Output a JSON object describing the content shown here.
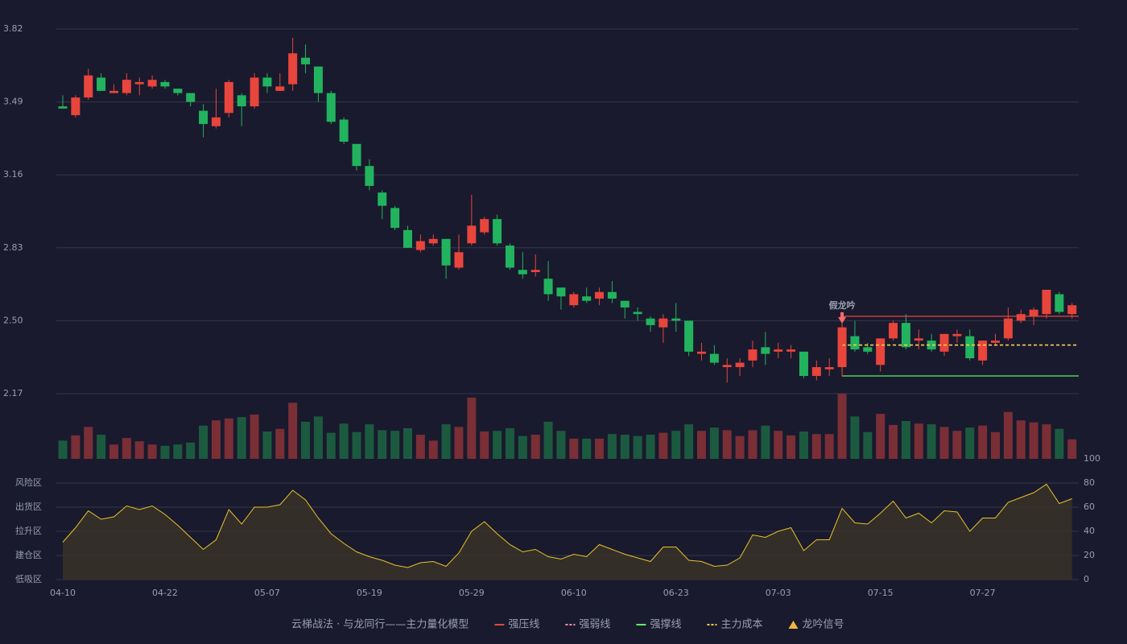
{
  "chart_data": {
    "type": "candlestick",
    "categories": [
      "04-10",
      null,
      null,
      null,
      null,
      null,
      null,
      null,
      "04-22",
      null,
      null,
      null,
      null,
      null,
      null,
      null,
      "05-07",
      null,
      null,
      null,
      null,
      null,
      null,
      null,
      "05-19",
      null,
      null,
      null,
      null,
      null,
      null,
      null,
      "05-29",
      null,
      null,
      null,
      null,
      null,
      null,
      null,
      "06-10",
      null,
      null,
      null,
      null,
      null,
      null,
      null,
      "06-23",
      null,
      null,
      null,
      null,
      null,
      null,
      null,
      "07-03",
      null,
      null,
      null,
      null,
      null,
      null,
      null,
      "07-15",
      null,
      null,
      null,
      null,
      null,
      null,
      null,
      "07-27",
      null,
      null,
      null,
      null,
      null,
      null,
      null
    ],
    "open": [
      3.47,
      3.43,
      3.51,
      3.6,
      3.53,
      3.53,
      3.57,
      3.56,
      3.58,
      3.55,
      3.53,
      3.45,
      3.38,
      3.44,
      3.52,
      3.47,
      3.6,
      3.54,
      3.57,
      3.69,
      3.65,
      3.53,
      3.41,
      3.3,
      3.2,
      3.08,
      3.01,
      2.91,
      2.82,
      2.85,
      2.87,
      2.74,
      2.85,
      2.9,
      2.96,
      2.84,
      2.73,
      2.72,
      2.69,
      2.65,
      2.57,
      2.61,
      2.6,
      2.63,
      2.59,
      2.54,
      2.51,
      2.47,
      2.51,
      2.5,
      2.35,
      2.35,
      2.29,
      2.29,
      2.32,
      2.38,
      2.36,
      2.36,
      2.36,
      2.25,
      2.28,
      2.29,
      2.43,
      2.38,
      2.3,
      2.42,
      2.49,
      2.41,
      2.41,
      2.36,
      2.43,
      2.43,
      2.32,
      2.4,
      2.42,
      2.5,
      2.52,
      2.53,
      2.62,
      2.53
    ],
    "high": [
      3.52,
      3.52,
      3.64,
      3.62,
      3.57,
      3.62,
      3.6,
      3.61,
      3.59,
      3.55,
      3.53,
      3.48,
      3.55,
      3.59,
      3.53,
      3.62,
      3.62,
      3.62,
      3.78,
      3.75,
      3.65,
      3.54,
      3.42,
      3.3,
      3.23,
      3.09,
      3.02,
      2.93,
      2.89,
      2.89,
      2.87,
      2.89,
      3.07,
      2.97,
      2.98,
      2.85,
      2.81,
      2.8,
      2.77,
      2.65,
      2.63,
      2.65,
      2.65,
      2.68,
      2.59,
      2.56,
      2.52,
      2.53,
      2.58,
      2.5,
      2.4,
      2.39,
      2.33,
      2.33,
      2.41,
      2.45,
      2.4,
      2.39,
      2.36,
      2.32,
      2.33,
      2.48,
      2.5,
      2.4,
      2.42,
      2.5,
      2.53,
      2.46,
      2.44,
      2.44,
      2.46,
      2.46,
      2.41,
      2.44,
      2.56,
      2.55,
      2.56,
      2.64,
      2.63,
      2.58
    ],
    "low": [
      3.46,
      3.42,
      3.5,
      3.54,
      3.53,
      3.52,
      3.52,
      3.55,
      3.55,
      3.52,
      3.47,
      3.33,
      3.37,
      3.42,
      3.38,
      3.46,
      3.53,
      3.54,
      3.54,
      3.62,
      3.49,
      3.39,
      3.3,
      3.18,
      3.09,
      2.96,
      2.91,
      2.83,
      2.81,
      2.84,
      2.69,
      2.73,
      2.84,
      2.89,
      2.84,
      2.73,
      2.69,
      2.7,
      2.59,
      2.55,
      2.56,
      2.58,
      2.57,
      2.58,
      2.51,
      2.5,
      2.45,
      2.4,
      2.45,
      2.34,
      2.32,
      2.3,
      2.22,
      2.25,
      2.29,
      2.3,
      2.33,
      2.33,
      2.24,
      2.23,
      2.25,
      2.25,
      2.36,
      2.35,
      2.27,
      2.41,
      2.37,
      2.37,
      2.36,
      2.34,
      2.4,
      2.32,
      2.3,
      2.39,
      2.41,
      2.49,
      2.48,
      2.51,
      2.53,
      2.51
    ],
    "close": [
      3.46,
      3.51,
      3.61,
      3.54,
      3.54,
      3.59,
      3.58,
      3.59,
      3.56,
      3.53,
      3.49,
      3.39,
      3.42,
      3.58,
      3.47,
      3.6,
      3.56,
      3.56,
      3.71,
      3.66,
      3.53,
      3.4,
      3.31,
      3.2,
      3.11,
      3.02,
      2.92,
      2.83,
      2.86,
      2.87,
      2.75,
      2.81,
      2.93,
      2.96,
      2.85,
      2.74,
      2.71,
      2.73,
      2.62,
      2.61,
      2.62,
      2.59,
      2.63,
      2.6,
      2.56,
      2.53,
      2.48,
      2.51,
      2.5,
      2.36,
      2.36,
      2.31,
      2.3,
      2.31,
      2.37,
      2.35,
      2.37,
      2.37,
      2.25,
      2.29,
      2.29,
      2.47,
      2.37,
      2.36,
      2.42,
      2.49,
      2.38,
      2.42,
      2.37,
      2.44,
      2.44,
      2.33,
      2.41,
      2.41,
      2.51,
      2.53,
      2.55,
      2.64,
      2.54,
      2.57
    ],
    "up_color": "#e8453c",
    "down_color": "#22b35e",
    "ylim": [
      2.17,
      3.82
    ],
    "yticks": [
      2.17,
      {
        "value": 2.5,
        "label": "2.50"
      },
      2.83,
      3.16,
      3.49,
      3.82
    ],
    "grid": true,
    "volume": [
      28,
      36,
      49,
      37,
      22,
      32,
      27,
      22,
      20,
      22,
      25,
      51,
      59,
      62,
      64,
      68,
      42,
      46,
      86,
      57,
      65,
      40,
      54,
      41,
      53,
      44,
      43,
      47,
      37,
      28,
      53,
      49,
      94,
      42,
      43,
      47,
      35,
      37,
      57,
      43,
      31,
      31,
      31,
      38,
      37,
      35,
      37,
      40,
      43,
      53,
      43,
      48,
      44,
      35,
      44,
      51,
      43,
      36,
      42,
      38,
      38,
      100,
      65,
      41,
      69,
      52,
      58,
      54,
      53,
      49,
      43,
      48,
      51,
      41,
      72,
      59,
      56,
      53,
      46,
      30
    ],
    "volume_ylim": [
      0,
      100
    ],
    "volume_up_color": "#7a2e36",
    "volume_down_color": "#1c5a40",
    "levels": [
      {
        "name": "强压线",
        "value": 2.52,
        "color": "#e8453c",
        "dash": false
      },
      {
        "name": "强弱线",
        "value": 2.39,
        "color": "#ff8fa3",
        "dash": true
      },
      {
        "name": "强撑线",
        "value": 2.25,
        "color": "#5cf06a",
        "dash": false
      },
      {
        "name": "主力成本",
        "value": 2.39,
        "color": "#f5d142",
        "dash": true
      }
    ],
    "annotation": {
      "text": "假龙吟",
      "index": 61,
      "color": "#ff6b6b"
    },
    "signal": {
      "name": "龙吟信号",
      "color": "#f5b342"
    },
    "legend_title": "云梯战法 · 与龙同行——主力量化模型",
    "indicator": {
      "values": [
        31,
        43,
        57,
        50,
        52,
        61,
        58,
        61,
        54,
        45,
        35,
        25,
        33,
        58,
        46,
        60,
        60,
        62,
        74,
        66,
        51,
        38,
        30,
        23,
        19,
        16,
        12,
        10,
        14,
        15,
        11,
        22,
        40,
        48,
        38,
        29,
        23,
        25,
        19,
        17,
        21,
        19,
        29,
        25,
        21,
        18,
        15,
        27,
        27,
        16,
        15,
        11,
        12,
        18,
        37,
        35,
        40,
        43,
        24,
        33,
        33,
        59,
        47,
        46,
        55,
        65,
        51,
        55,
        47,
        57,
        56,
        40,
        51,
        51,
        64,
        68,
        72,
        79,
        63,
        67
      ],
      "color": "#e6c229",
      "ylim": [
        0,
        100
      ],
      "yticks": [
        0,
        20,
        40,
        60,
        80,
        100
      ],
      "ytick_colors": [
        "#e8453c",
        "#f5a623",
        "#4a90e2",
        "#d94bd6",
        "#f5a623",
        "#22c55e"
      ],
      "zones": [
        {
          "label": "风险区",
          "value": 80,
          "color": "#f5a623"
        },
        {
          "label": "出货区",
          "value": 60,
          "color": "#e04bd6"
        },
        {
          "label": "拉升区",
          "value": 40,
          "color": "#4a90e2"
        },
        {
          "label": "建仓区",
          "value": 20,
          "color": "#f0603c"
        },
        {
          "label": "低吸区",
          "value": 0,
          "color": "#e8453c"
        }
      ]
    }
  }
}
